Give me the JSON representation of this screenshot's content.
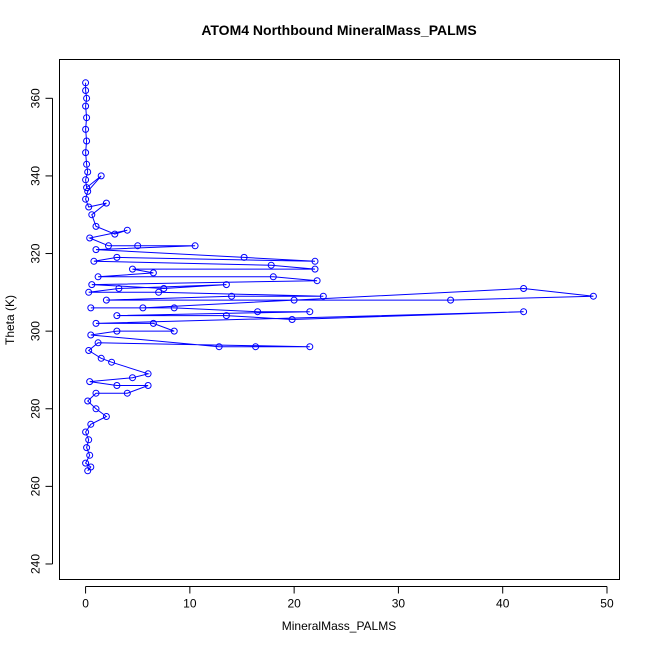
{
  "chart_data": {
    "type": "line",
    "title": "ATOM4 Northbound MineralMass_PALMS",
    "xlabel": "MineralMass_PALMS",
    "ylabel": "Theta (K)",
    "xlim": [
      -2.5,
      51.2
    ],
    "ylim": [
      236,
      370
    ],
    "xticks": [
      0,
      10,
      20,
      30,
      40,
      50
    ],
    "yticks": [
      240,
      260,
      280,
      300,
      320,
      340,
      360
    ],
    "grid": false,
    "marker": "open-circle",
    "series_color": "#0000ff",
    "series": [
      {
        "values": [
          [
            0.0,
            364
          ],
          [
            0.0,
            362
          ],
          [
            0.1,
            360
          ],
          [
            0.0,
            358
          ],
          [
            0.1,
            355
          ],
          [
            0.0,
            352
          ],
          [
            0.1,
            349
          ],
          [
            0.0,
            346
          ],
          [
            0.1,
            343
          ],
          [
            0.2,
            341
          ],
          [
            0.0,
            339
          ],
          [
            0.1,
            337
          ],
          [
            1.5,
            340
          ],
          [
            0.2,
            336
          ],
          [
            0.0,
            334
          ],
          [
            0.3,
            332
          ],
          [
            2.0,
            333
          ],
          [
            0.6,
            330
          ],
          [
            1.0,
            327
          ],
          [
            2.8,
            325
          ],
          [
            4.0,
            326
          ],
          [
            0.4,
            324
          ],
          [
            2.2,
            322
          ],
          [
            5.0,
            322
          ],
          [
            10.5,
            322
          ],
          [
            1.0,
            321
          ],
          [
            15.2,
            319
          ],
          [
            22.0,
            318
          ],
          [
            3.0,
            319
          ],
          [
            0.8,
            318
          ],
          [
            17.8,
            317
          ],
          [
            22.0,
            316
          ],
          [
            4.5,
            316
          ],
          [
            6.5,
            315
          ],
          [
            1.2,
            314
          ],
          [
            18.0,
            314
          ],
          [
            22.2,
            313
          ],
          [
            0.6,
            312
          ],
          [
            7.5,
            311
          ],
          [
            13.5,
            312
          ],
          [
            3.2,
            311
          ],
          [
            0.3,
            310
          ],
          [
            7.0,
            310
          ],
          [
            22.8,
            309
          ],
          [
            14.0,
            309
          ],
          [
            2.0,
            308
          ],
          [
            35.0,
            308
          ],
          [
            48.7,
            309
          ],
          [
            42.0,
            311
          ],
          [
            20.0,
            308
          ],
          [
            5.5,
            306
          ],
          [
            0.5,
            306
          ],
          [
            8.5,
            306
          ],
          [
            16.5,
            305
          ],
          [
            21.5,
            305
          ],
          [
            3.0,
            304
          ],
          [
            13.5,
            304
          ],
          [
            19.8,
            303
          ],
          [
            42.0,
            305
          ],
          [
            1.0,
            302
          ],
          [
            6.5,
            302
          ],
          [
            8.5,
            300
          ],
          [
            3.0,
            300
          ],
          [
            0.5,
            299
          ],
          [
            12.8,
            296
          ],
          [
            16.3,
            296
          ],
          [
            21.5,
            296
          ],
          [
            1.2,
            297
          ],
          [
            0.3,
            295
          ],
          [
            1.5,
            293
          ],
          [
            2.5,
            292
          ],
          [
            6.0,
            289
          ],
          [
            4.5,
            288
          ],
          [
            0.4,
            287
          ],
          [
            3.0,
            286
          ],
          [
            6.0,
            286
          ],
          [
            4.0,
            284
          ],
          [
            1.0,
            284
          ],
          [
            0.2,
            282
          ],
          [
            1.0,
            280
          ],
          [
            2.0,
            278
          ],
          [
            0.5,
            276
          ],
          [
            0.0,
            274
          ],
          [
            0.3,
            272
          ],
          [
            0.1,
            270
          ],
          [
            0.4,
            268
          ],
          [
            0.0,
            266
          ],
          [
            0.5,
            265
          ],
          [
            0.2,
            264
          ]
        ]
      }
    ]
  }
}
